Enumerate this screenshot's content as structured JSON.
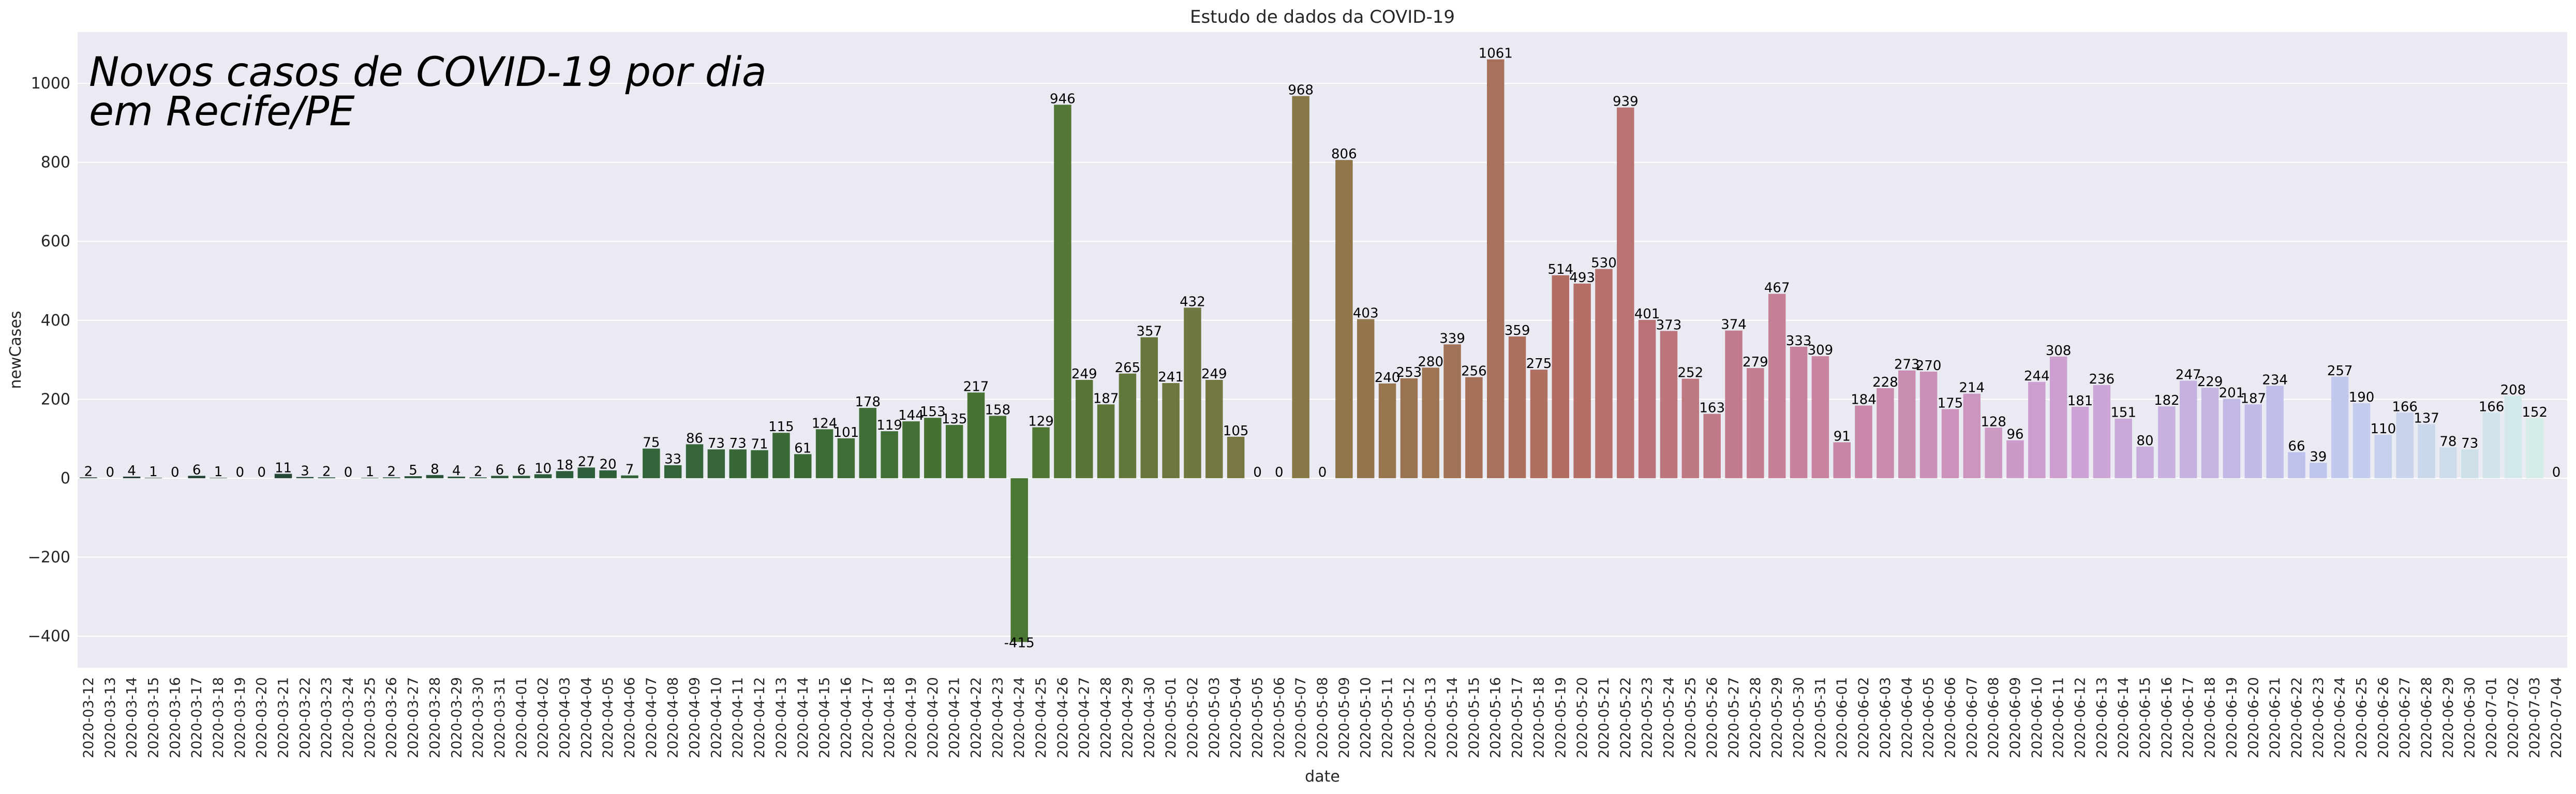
{
  "chart_data": {
    "type": "bar",
    "title": "Estudo de dados da COVID-19",
    "annotation": [
      "Novos casos de COVID-19 por dia",
      "em Recife/PE"
    ],
    "xlabel": "date",
    "ylabel": "newCases",
    "ylim": [
      -480,
      1130
    ],
    "yticks": [
      -400,
      -200,
      0,
      200,
      400,
      600,
      800,
      1000
    ],
    "ytick_labels": [
      "−400",
      "−200",
      "0",
      "200",
      "400",
      "600",
      "800",
      "1000"
    ],
    "grid": true,
    "background": "#eaeaf2",
    "categories": [
      "2020-03-12",
      "2020-03-13",
      "2020-03-14",
      "2020-03-15",
      "2020-03-16",
      "2020-03-17",
      "2020-03-18",
      "2020-03-19",
      "2020-03-20",
      "2020-03-21",
      "2020-03-22",
      "2020-03-23",
      "2020-03-24",
      "2020-03-25",
      "2020-03-26",
      "2020-03-27",
      "2020-03-28",
      "2020-03-29",
      "2020-03-30",
      "2020-03-31",
      "2020-04-01",
      "2020-04-02",
      "2020-04-03",
      "2020-04-04",
      "2020-04-05",
      "2020-04-06",
      "2020-04-07",
      "2020-04-08",
      "2020-04-09",
      "2020-04-10",
      "2020-04-11",
      "2020-04-12",
      "2020-04-13",
      "2020-04-14",
      "2020-04-15",
      "2020-04-16",
      "2020-04-17",
      "2020-04-18",
      "2020-04-19",
      "2020-04-20",
      "2020-04-21",
      "2020-04-22",
      "2020-04-23",
      "2020-04-24",
      "2020-04-25",
      "2020-04-26",
      "2020-04-27",
      "2020-04-28",
      "2020-04-29",
      "2020-04-30",
      "2020-05-01",
      "2020-05-02",
      "2020-05-03",
      "2020-05-04",
      "2020-05-05",
      "2020-05-06",
      "2020-05-07",
      "2020-05-08",
      "2020-05-09",
      "2020-05-10",
      "2020-05-11",
      "2020-05-12",
      "2020-05-13",
      "2020-05-14",
      "2020-05-15",
      "2020-05-16",
      "2020-05-17",
      "2020-05-18",
      "2020-05-19",
      "2020-05-20",
      "2020-05-21",
      "2020-05-22",
      "2020-05-23",
      "2020-05-24",
      "2020-05-25",
      "2020-05-26",
      "2020-05-27",
      "2020-05-28",
      "2020-05-29",
      "2020-05-30",
      "2020-05-31",
      "2020-06-01",
      "2020-06-02",
      "2020-06-03",
      "2020-06-04",
      "2020-06-05",
      "2020-06-06",
      "2020-06-07",
      "2020-06-08",
      "2020-06-09",
      "2020-06-10",
      "2020-06-11",
      "2020-06-12",
      "2020-06-13",
      "2020-06-14",
      "2020-06-15",
      "2020-06-16",
      "2020-06-17",
      "2020-06-18",
      "2020-06-19",
      "2020-06-20",
      "2020-06-21",
      "2020-06-22",
      "2020-06-23",
      "2020-06-24",
      "2020-06-25",
      "2020-06-26",
      "2020-06-27",
      "2020-06-28",
      "2020-06-29",
      "2020-06-30",
      "2020-07-01",
      "2020-07-02",
      "2020-07-03",
      "2020-07-04"
    ],
    "values": [
      2,
      0,
      4,
      1,
      0,
      6,
      1,
      0,
      0,
      11,
      3,
      2,
      0,
      1,
      2,
      5,
      8,
      4,
      2,
      6,
      6,
      10,
      18,
      27,
      20,
      7,
      75,
      33,
      86,
      73,
      73,
      71,
      115,
      61,
      124,
      101,
      178,
      119,
      144,
      153,
      135,
      217,
      158,
      -415,
      129,
      946,
      249,
      187,
      265,
      357,
      241,
      432,
      249,
      105,
      0,
      0,
      968,
      0,
      806,
      403,
      240,
      253,
      280,
      339,
      256,
      1061,
      359,
      275,
      514,
      493,
      530,
      939,
      401,
      373,
      252,
      163,
      374,
      279,
      467,
      333,
      309,
      91,
      184,
      228,
      273,
      270,
      175,
      214,
      128,
      96,
      244,
      308,
      181,
      236,
      151,
      80,
      182,
      247,
      229,
      201,
      187,
      234,
      66,
      39,
      257,
      190,
      110,
      166,
      137,
      78,
      73,
      166,
      208,
      152,
      0
    ]
  }
}
